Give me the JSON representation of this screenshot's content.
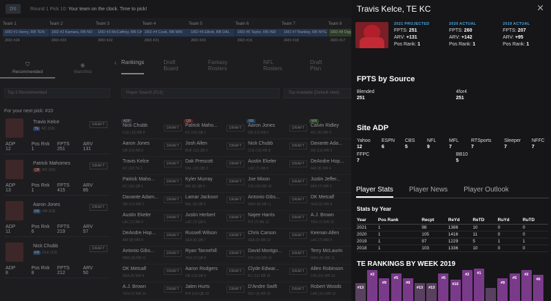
{
  "topbar": {
    "logo": "DS",
    "clock_prefix": "Round 1 Pick 10:",
    "clock_text": " Your team on the clock. Time to pick!"
  },
  "teams": [
    {
      "name": "Team 1",
      "pick1": "1RD #1 Henry, RB TEN",
      "pick1_color": "blue",
      "pick2": "2RD #24"
    },
    {
      "name": "Team 2",
      "pick1": "1RD #2 Kamara, RB NO",
      "pick1_color": "blue",
      "pick2": "2RD #23"
    },
    {
      "name": "Team 3",
      "pick1": "1RD #3 McCaffrey, RB CAR",
      "pick1_color": "blue",
      "pick2": "2RD #22"
    },
    {
      "name": "Team 4",
      "pick1": "1RD #4 Cook, RB MIN",
      "pick1_color": "blue",
      "pick2": "2RD #21"
    },
    {
      "name": "Team 5",
      "pick1": "1RD #5 Elliott, RB DAL",
      "pick1_color": "blue",
      "pick2": "2RD #20"
    },
    {
      "name": "Team 6",
      "pick1": "1RD #6 Taylor, RB IND",
      "pick1_color": "blue",
      "pick2": "2RD #19"
    },
    {
      "name": "Team 7",
      "pick1": "1RD #7 Barkley, RB NYG",
      "pick1_color": "blue",
      "pick2": "2RD #18"
    },
    {
      "name": "Team 8",
      "pick1": "1RD #8 Diggs, WR BUF",
      "pick1_color": "green",
      "pick2": "2RD #17"
    }
  ],
  "left_tabs": {
    "recommended": "Recommended",
    "watchlist": "Watchlist"
  },
  "rec_filter": "Top 5 Recommended",
  "next_pick": "For your next pick: #10",
  "stat_labels": {
    "adp": "ADP",
    "pos_rank": "Pos Rnk",
    "fpts": "FPTS",
    "arv": "ARV"
  },
  "draft_label": "DRAFT",
  "recommended": [
    {
      "name": "Travis Kelce",
      "pos": "TE",
      "pos_color": "#3a5a9a",
      "team": "KC (10)",
      "adp": "12",
      "pos_rank": "1",
      "fpts": "251",
      "arv": "131"
    },
    {
      "name": "Patrick Mahomes",
      "pos": "QB",
      "pos_color": "#8a2a2a",
      "team": "KC (10)",
      "adp": "13",
      "pos_rank": "1",
      "fpts": "415",
      "arv": "86"
    },
    {
      "name": "Aaron Jones",
      "pos": "RB",
      "pos_color": "#2a5a8a",
      "team": "GB (13)",
      "adp": "11",
      "pos_rank": "6",
      "fpts": "219",
      "arv": "57"
    },
    {
      "name": "Nick Chubb",
      "pos": "RB",
      "pos_color": "#2a5a8a",
      "team": "CLE (13)",
      "adp": "8",
      "pos_rank": "8",
      "fpts": "212",
      "arv": "50"
    }
  ],
  "main_tabs": [
    "Rankings",
    "Draft Board",
    "Fantasy Rosters",
    "NFL Rosters",
    "Draft Plan"
  ],
  "search_placeholder": "Player Search (F12)",
  "filter_label": "Top Available (Default view)",
  "columns": [
    {
      "label": "ADP",
      "color": "#3a3d44",
      "players": [
        {
          "name": "Nick Chubb",
          "sub": "CLE (13) RB 8"
        },
        {
          "name": "Aaron Jones",
          "sub": "GB (13) RB 6"
        },
        {
          "name": "Travis Kelce",
          "sub": "KC (10) TE 1"
        },
        {
          "name": "Patrick Maho...",
          "sub": "KC (10) QB 1"
        },
        {
          "name": "Davante Adam...",
          "sub": "GB (13) WR 2"
        },
        {
          "name": "Austin Ekeler",
          "sub": "LAC (7) RB 9"
        },
        {
          "name": "DeAndre Hop...",
          "sub": "ARI (8) WR 4"
        },
        {
          "name": "Antonio Gibs...",
          "sub": "WAS (8) RB 11"
        },
        {
          "name": "DK Metcalf",
          "sub": "SEA (6) WR 8"
        },
        {
          "name": "A.J. Brown",
          "sub": "TEN (7) WR 10"
        }
      ]
    },
    {
      "label": "QB",
      "color": "#8a2a2a",
      "players": [
        {
          "name": "Patrick Maho...",
          "sub": "KC (10) QB 1"
        },
        {
          "name": "Josh Allen",
          "sub": "BUF (11) QB 2"
        },
        {
          "name": "Dak Prescott",
          "sub": "DAL (10) QB 3"
        },
        {
          "name": "Kyler Murray",
          "sub": "ARI (8) QB 4"
        },
        {
          "name": "Lamar Jackson",
          "sub": "BAL (8) QB 5"
        },
        {
          "name": "Justin Herbert",
          "sub": "LAC (7) QB 6"
        },
        {
          "name": "Russell Wilson",
          "sub": "SEA (6) QB 7"
        },
        {
          "name": "Ryan Tannehill",
          "sub": "TEN (7) QB 8"
        },
        {
          "name": "Aaron Rodgers",
          "sub": "GB (13) QB 9"
        },
        {
          "name": "Jalen Hurts",
          "sub": "PHI (14) QB 10"
        }
      ]
    },
    {
      "label": "RB",
      "color": "#2a5a8a",
      "players": [
        {
          "name": "Aaron Jones",
          "sub": "GB (13) RB 6"
        },
        {
          "name": "Nick Chubb",
          "sub": "CLE (13) RB 8"
        },
        {
          "name": "Austin Ekeler",
          "sub": "LAC (7) RB 9"
        },
        {
          "name": "Joe Mixon",
          "sub": "CIN (10) RB 10"
        },
        {
          "name": "Antonio Gibs...",
          "sub": "WAS (8) RB 11"
        },
        {
          "name": "Najee Harris",
          "sub": "PIT (7) RB 12"
        },
        {
          "name": "Chris Carson",
          "sub": "SEA (9) RB 13"
        },
        {
          "name": "David Montgo...",
          "sub": "CHI (10) RB 14"
        },
        {
          "name": "Clyde Edwar...",
          "sub": "KC (12) RB 15"
        },
        {
          "name": "D'Andre Swift",
          "sub": "DET (9) RB 16"
        }
      ]
    },
    {
      "label": "WR",
      "color": "#3a6a2a",
      "players": [
        {
          "name": "Calvin Ridley",
          "sub": "ATL (6) WR 3"
        },
        {
          "name": "Davante Ada...",
          "sub": "GB (13) WR 2"
        },
        {
          "name": "DeAndre Hop...",
          "sub": "ARI (8) WR 4"
        },
        {
          "name": "Justin Jeffer...",
          "sub": "MIN (7) WR 5"
        },
        {
          "name": "DK Metcalf",
          "sub": "SEA (6) WR 8"
        },
        {
          "name": "A.J. Brown",
          "sub": "TEN (7) WR 10"
        },
        {
          "name": "Keenan Allen",
          "sub": "LAC (7) WR 9"
        },
        {
          "name": "Terry McLaurin",
          "sub": "WAS (8) WR 11"
        },
        {
          "name": "Allen Robinson",
          "sub": "CHI (10) WR 12"
        },
        {
          "name": "Robert Woods",
          "sub": "LAR (11) WR 13"
        }
      ]
    }
  ],
  "drawer": {
    "title": "Travis Kelce, TE KC",
    "projected": {
      "header": "2021 PROJECTED",
      "fpts": "251",
      "arv": "+131",
      "pos_rank": "1"
    },
    "actual2020": {
      "header": "2020 ACTUAL",
      "fpts": "260",
      "arv": "+142",
      "pos_rank": "1"
    },
    "actual2019": {
      "header": "2019 ACTUAL",
      "fpts": "207",
      "arv": "+95",
      "pos_rank": "1"
    },
    "labels": {
      "fpts": "FPTS:",
      "arv": "ARV:",
      "pos_rank": "Pos Rank:"
    },
    "fpts_by_source_title": "FPTS by Source",
    "sources": [
      {
        "name": "Blended",
        "value": "251"
      },
      {
        "name": "4for4",
        "value": "251"
      }
    ],
    "site_adp_title": "Site ADP",
    "site_adp": [
      {
        "name": "Yahoo",
        "value": "12"
      },
      {
        "name": "ESPN",
        "value": "6"
      },
      {
        "name": "CBS",
        "value": "5"
      },
      {
        "name": "NFL",
        "value": "9"
      },
      {
        "name": "MFL",
        "value": "7"
      },
      {
        "name": "RTSports",
        "value": "7"
      },
      {
        "name": "Sleeper",
        "value": "7"
      },
      {
        "name": "NFFC",
        "value": "7"
      },
      {
        "name": "FFPC",
        "value": "7"
      },
      {
        "name": "BB10",
        "value": "5"
      }
    ],
    "tabs": [
      "Player Stats",
      "Player News",
      "Player Outlook"
    ],
    "stats_by_year_title": "Stats by Year",
    "stats_headers": [
      "Year",
      "Pos Rank",
      "Recpt",
      "ReYd",
      "ReTD",
      "RuYd",
      "RuTD"
    ],
    "stats_rows": [
      [
        "2021",
        "1",
        "98",
        "1386",
        "10",
        "0",
        "0"
      ],
      [
        "2020",
        "1",
        "105",
        "1416",
        "11",
        "0",
        "0"
      ],
      [
        "2019",
        "1",
        "97",
        "1229",
        "5",
        "1",
        "1"
      ],
      [
        "2018",
        "1",
        "103",
        "1336",
        "10",
        "0",
        "0"
      ]
    ],
    "week_title": "TE RANKINGS BY WEEK 2019",
    "weeks": [
      {
        "rank": "#13",
        "dim": true,
        "level": 0.55
      },
      {
        "rank": "#2",
        "dim": false,
        "level": 0.95
      },
      {
        "rank": "#9",
        "dim": false,
        "level": 0.7
      },
      {
        "rank": "#5",
        "dim": false,
        "level": 0.85
      },
      {
        "rank": "#9",
        "dim": false,
        "level": 0.7
      },
      {
        "rank": "#13",
        "dim": true,
        "level": 0.55
      },
      {
        "rank": "#13",
        "dim": true,
        "level": 0.55
      },
      {
        "rank": "#5",
        "dim": false,
        "level": 0.85
      },
      {
        "rank": "#10",
        "dim": false,
        "level": 0.65
      },
      {
        "rank": "#2",
        "dim": false,
        "level": 0.95
      },
      {
        "rank": "#1",
        "dim": false,
        "level": 1.0
      },
      {
        "rank": "",
        "dim": true,
        "level": 0.4
      },
      {
        "rank": "#9",
        "dim": false,
        "level": 0.7
      },
      {
        "rank": "#5",
        "dim": false,
        "level": 0.85
      },
      {
        "rank": "#2",
        "dim": false,
        "level": 0.95
      },
      {
        "rank": "#6",
        "dim": false,
        "level": 0.8
      }
    ]
  }
}
